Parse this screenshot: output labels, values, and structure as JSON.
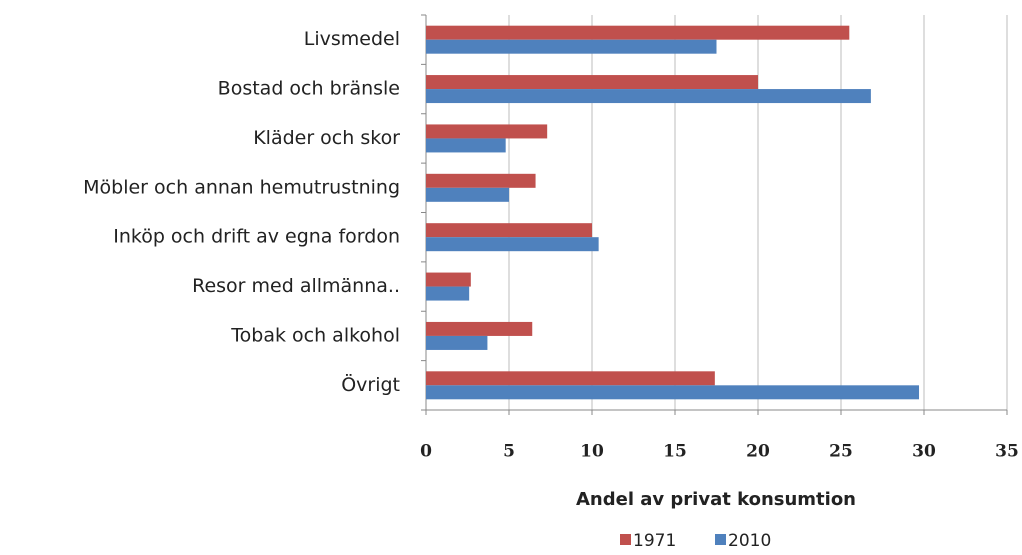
{
  "chart_data": {
    "type": "hbar",
    "x_label": "Andel av privat konsumtion",
    "categories": [
      "Livsmedel",
      "Bostad och bränsle",
      "Kläder och skor",
      "Möbler och annan hemutrustning",
      "Inköp och drift av egna fordon",
      "Resor med allmänna..",
      "Tobak och alkohol",
      "Övrigt"
    ],
    "series": [
      {
        "name": "1971",
        "color": "#c0504d",
        "values": [
          25.5,
          20,
          7.3,
          6.6,
          10,
          2.7,
          6.4,
          17.4
        ]
      },
      {
        "name": "2010",
        "color": "#4f81bd",
        "values": [
          17.5,
          26.8,
          4.8,
          5,
          10.4,
          2.6,
          3.7,
          29.7
        ]
      }
    ],
    "xlim": [
      0,
      35
    ],
    "xticks": [
      0,
      5,
      10,
      15,
      20,
      25,
      30,
      35
    ],
    "grid": true,
    "legend": "bottom"
  }
}
